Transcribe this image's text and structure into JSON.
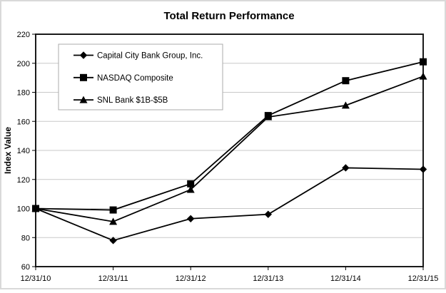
{
  "chart_data": {
    "type": "line",
    "title": "Total Return Performance",
    "xlabel": "",
    "ylabel": "Index Value",
    "categories": [
      "12/31/10",
      "12/31/11",
      "12/31/12",
      "12/31/13",
      "12/31/14",
      "12/31/15"
    ],
    "series": [
      {
        "name": "Capital City Bank Group, Inc.",
        "marker": "diamond",
        "values": [
          100,
          78,
          93,
          96,
          128,
          127
        ]
      },
      {
        "name": "NASDAQ Composite",
        "marker": "square",
        "values": [
          100,
          99,
          117,
          164,
          188,
          201
        ]
      },
      {
        "name": "SNL Bank $1B-$5B",
        "marker": "triangle",
        "values": [
          100,
          91,
          113,
          163,
          171,
          191
        ]
      }
    ],
    "y_axis": {
      "min": 60,
      "max": 220,
      "step": 20
    },
    "grid": "horizontal-only",
    "legend_position": "top-left-inside",
    "colors": {
      "line": "#000000",
      "marker": "#000000",
      "grid": "#c9c9c9",
      "plot_border": "#1a1a1a",
      "legend_border": "#ababab",
      "figure_border": "#d9d9d9",
      "background": "#ffffff",
      "text": "#000000"
    }
  }
}
